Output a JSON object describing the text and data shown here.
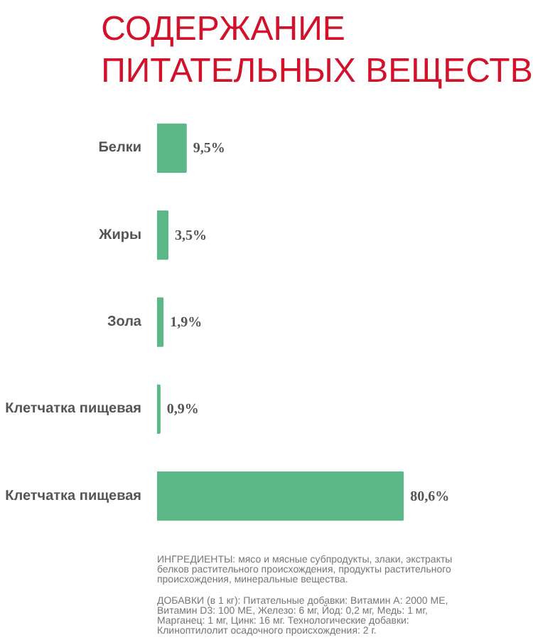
{
  "chart_data": {
    "type": "bar",
    "orientation": "horizontal",
    "title": "СОДЕРЖАНИЕ ПИТАТЕЛЬНЫХ ВЕЩЕСТВ",
    "categories": [
      "Белки",
      "Жиры",
      "Зола",
      "Клетчатка пищевая",
      "Клетчатка пищевая"
    ],
    "values": [
      9.5,
      3.5,
      1.9,
      0.9,
      80.6
    ],
    "value_labels": [
      "9,5%",
      "3,5%",
      "1,9%",
      "0,9%",
      "80,6%"
    ],
    "color": "#5cb888",
    "annotations": [
      "ИНГРЕДИЕНТЫ: мясо и мясные субпродукты, злаки, экстракты белков растительного происхождения, продукты растительного происхождения, минеральные вещества.",
      "ДОБАВКИ (в 1 кг): Питательные добавки: Витамин А: 2000 МЕ, Витамин D3: 100 МЕ, Железо: 6 мг, Йод: 0,2 мг, Медь: 1 мг, Марганец: 1 мг, Цинк: 16 мг. Технологические добавки: Клиноптилолит осадочного происхождения: 2 г."
    ]
  }
}
